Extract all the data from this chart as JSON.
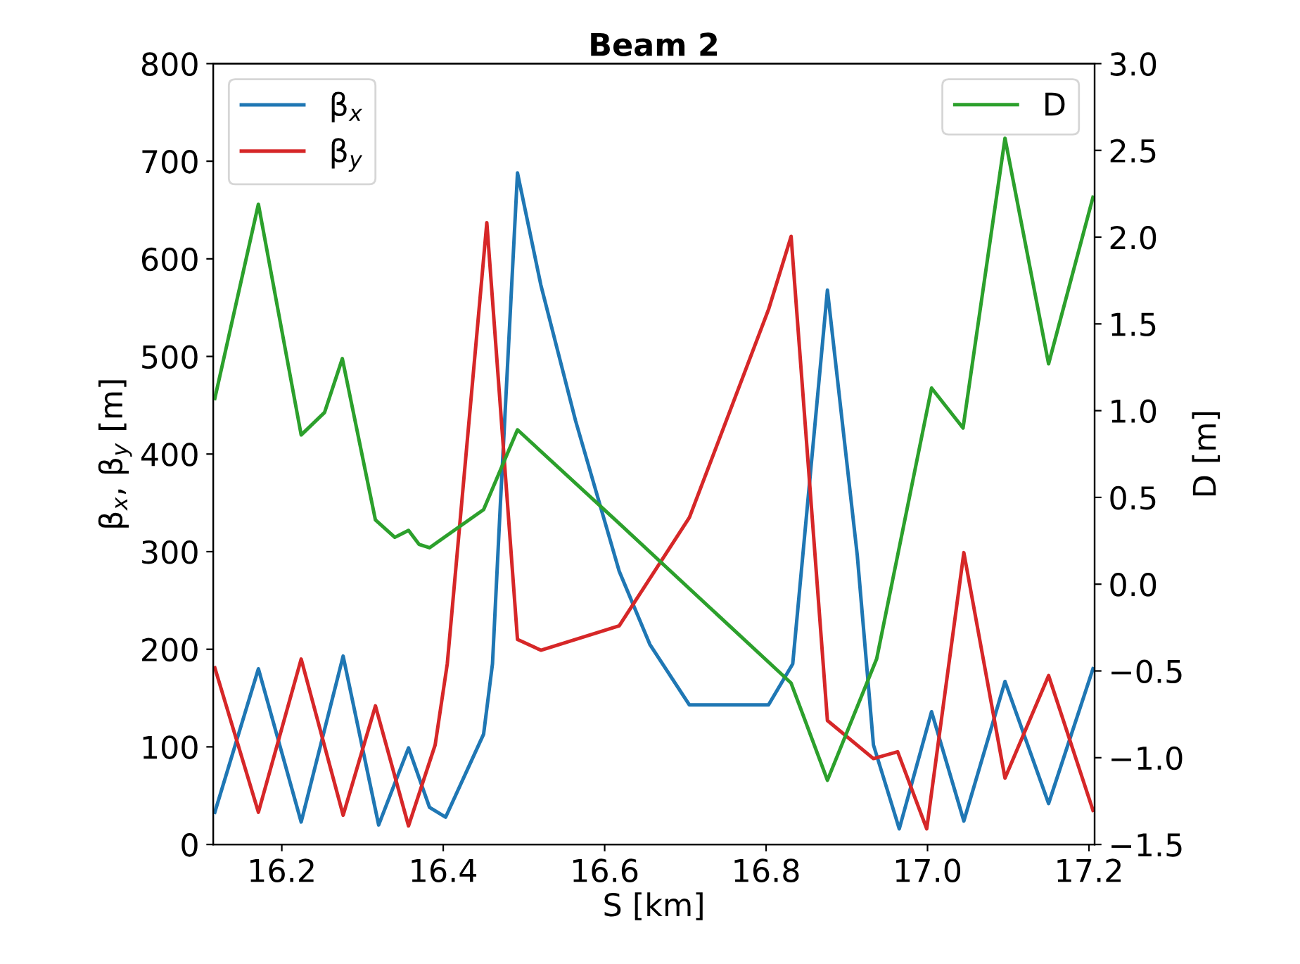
{
  "chart_data": {
    "type": "line",
    "title": "Beam 2",
    "xlabel": "S [km]",
    "ylabel": "β$_{x}$, β$_{y}$ [m]",
    "y2label": "D [m]",
    "xlim": [
      16.115,
      17.207
    ],
    "xticks": [
      {
        "value": 16.2,
        "label": "16.2"
      },
      {
        "value": 16.4,
        "label": "16.4"
      },
      {
        "value": 16.6,
        "label": "16.6"
      },
      {
        "value": 16.8,
        "label": "16.8"
      },
      {
        "value": 17.0,
        "label": "17.0"
      },
      {
        "value": 17.2,
        "label": "17.2"
      }
    ],
    "ylim": [
      0,
      800
    ],
    "yticks": [
      0,
      100,
      200,
      300,
      400,
      500,
      600,
      700,
      800
    ],
    "y2lim": [
      -1.5,
      3.0
    ],
    "y2ticks": [
      {
        "value": -1.5,
        "label": "−1.5"
      },
      {
        "value": -1.0,
        "label": "−1.0"
      },
      {
        "value": -0.5,
        "label": "−0.5"
      },
      {
        "value": 0.0,
        "label": "0.0"
      },
      {
        "value": 0.5,
        "label": "0.5"
      },
      {
        "value": 1.0,
        "label": "1.0"
      },
      {
        "value": 1.5,
        "label": "1.5"
      },
      {
        "value": 2.0,
        "label": "2.0"
      },
      {
        "value": 2.5,
        "label": "2.5"
      },
      {
        "value": 3.0,
        "label": "3.0"
      }
    ],
    "grid": false,
    "legend": "top",
    "line_style": "solid",
    "series": [
      {
        "name": "β$_{x}$",
        "color": "#1f77b4",
        "x": [
          16.117,
          16.171,
          16.224,
          16.276,
          16.32,
          16.357,
          16.383,
          16.403,
          16.45,
          16.461,
          16.471,
          16.492,
          16.521,
          16.564,
          16.618,
          16.656,
          16.705,
          16.803,
          16.833,
          16.876,
          16.913,
          16.933,
          16.965,
          17.005,
          17.045,
          17.096,
          17.15,
          17.205
        ],
        "values": [
          33,
          180,
          23,
          193,
          20,
          99,
          38,
          28,
          113,
          185,
          352,
          688,
          573,
          434,
          280,
          205,
          143,
          143,
          185,
          568,
          296,
          102,
          16,
          136,
          24,
          167,
          42,
          180
        ]
      },
      {
        "name": "β$_{y}$",
        "color": "#d62728",
        "x": [
          16.117,
          16.171,
          16.224,
          16.276,
          16.316,
          16.357,
          16.39,
          16.405,
          16.454,
          16.492,
          16.521,
          16.618,
          16.705,
          16.803,
          16.831,
          16.876,
          16.933,
          16.963,
          16.999,
          17.045,
          17.096,
          17.15,
          17.205
        ],
        "values": [
          181,
          33,
          190,
          30,
          142,
          19,
          102,
          185,
          637,
          210,
          199,
          224,
          335,
          548,
          623,
          127,
          88,
          95,
          16,
          299,
          68,
          173,
          35
        ]
      },
      {
        "name": "D",
        "color": "#2ca02c",
        "axis": "y2",
        "x": [
          16.117,
          16.171,
          16.224,
          16.253,
          16.275,
          16.316,
          16.34,
          16.357,
          16.37,
          16.383,
          16.45,
          16.492,
          16.618,
          16.831,
          16.876,
          16.937,
          17.005,
          17.044,
          17.096,
          17.15,
          17.205
        ],
        "values": [
          1.07,
          2.19,
          0.86,
          0.99,
          1.3,
          0.37,
          0.27,
          0.31,
          0.23,
          0.21,
          0.43,
          0.89,
          0.35,
          -0.57,
          -1.13,
          -0.43,
          1.13,
          0.9,
          2.57,
          1.27,
          2.23
        ]
      }
    ]
  }
}
